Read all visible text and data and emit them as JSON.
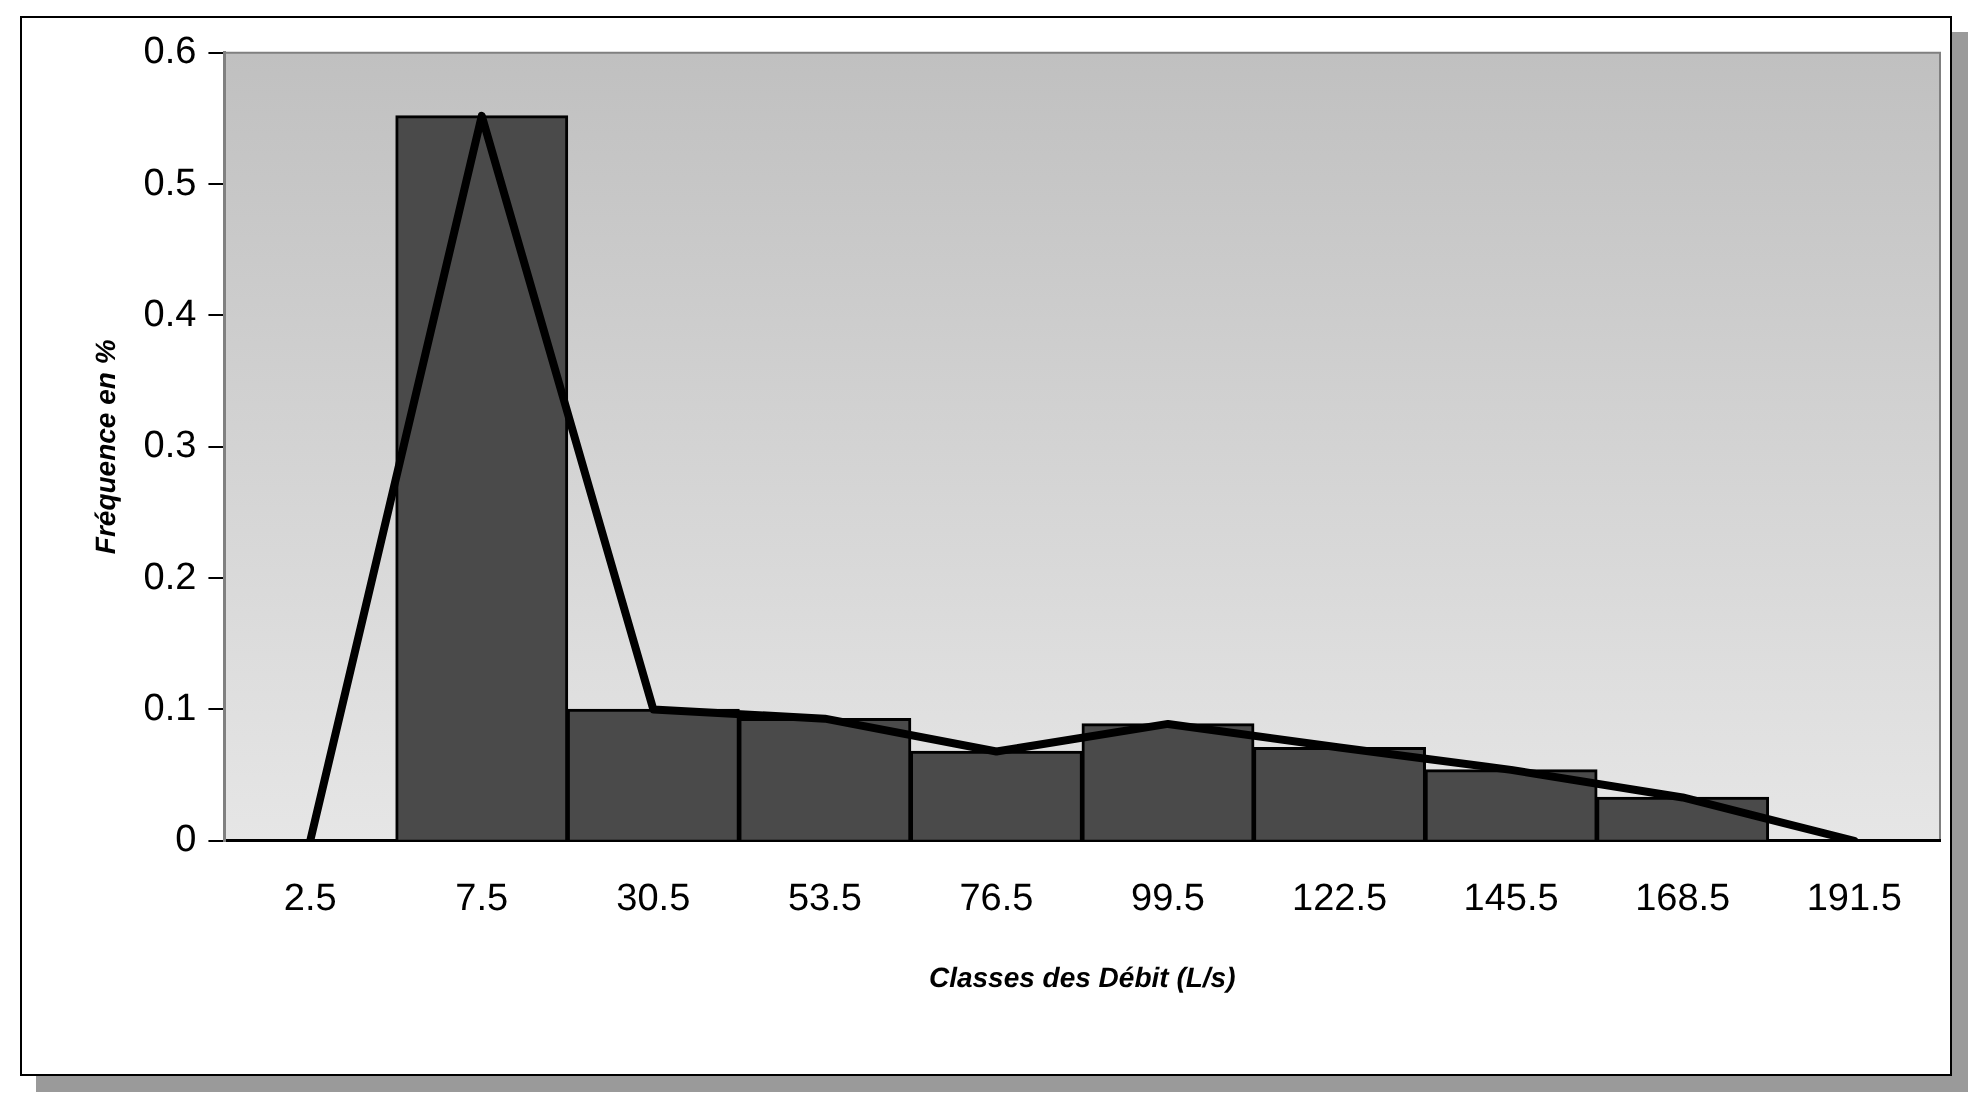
{
  "chart_data": {
    "type": "bar",
    "xlabel": "Classes des Débit (L/s)",
    "ylabel": "Fréquence en %",
    "categories": [
      "2.5",
      "7.5",
      "30.5",
      "53.5",
      "76.5",
      "99.5",
      "122.5",
      "145.5",
      "168.5",
      "191.5"
    ],
    "series": [
      {
        "type": "bar",
        "color": "#4a4a4a",
        "values": [
          null,
          0.552,
          0.1,
          0.093,
          0.068,
          0.089,
          0.071,
          0.054,
          0.033,
          null
        ]
      },
      {
        "type": "line",
        "color": "#000000",
        "values": [
          0,
          0.552,
          0.1,
          0.093,
          0.068,
          0.089,
          0.071,
          0.054,
          0.033,
          0
        ]
      }
    ],
    "ylim": [
      0,
      0.6
    ],
    "yticks": [
      0,
      0.1,
      0.2,
      0.3,
      0.4,
      0.5,
      0.6
    ],
    "grid": false,
    "legend": false,
    "marker": "none",
    "line_style": "solid"
  }
}
